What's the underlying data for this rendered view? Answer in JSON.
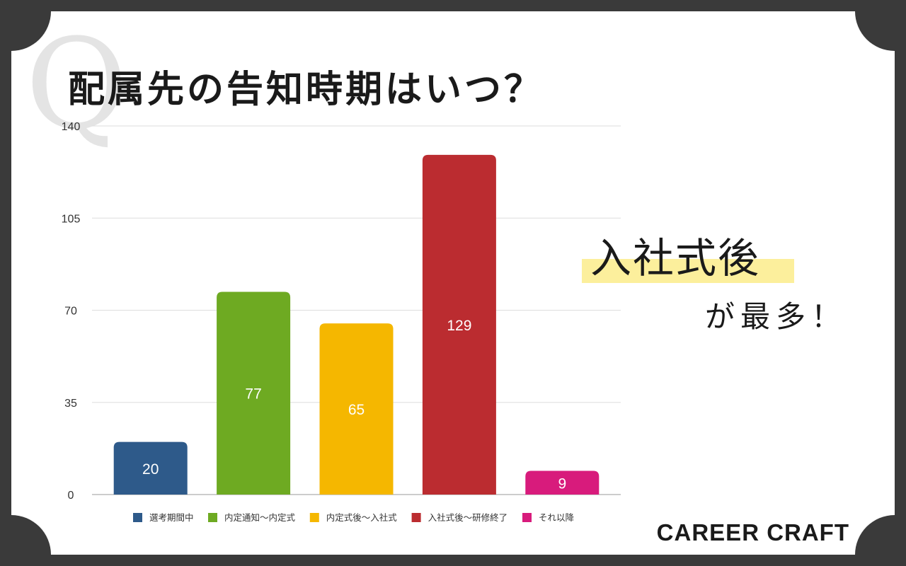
{
  "title": "配属先の告知時期はいつ？",
  "q_mark": "Q",
  "highlight": {
    "main": "入社式後",
    "sub": "が最多！",
    "bar_color": "#fcef9c"
  },
  "brand": "CAREER CRAFT",
  "colors": {
    "background_frame": "#3a3a3a",
    "card": "#ffffff"
  },
  "chart_data": {
    "type": "bar",
    "categories": [
      "選考期間中",
      "内定通知〜内定式",
      "内定式後〜入社式",
      "入社式後〜研修終了",
      "それ以降"
    ],
    "values": [
      20,
      77,
      65,
      129,
      9
    ],
    "colors": [
      "#2e5a8a",
      "#6eaa22",
      "#f5b700",
      "#bb2c30",
      "#d81b7c"
    ],
    "yticks": [
      0,
      35,
      70,
      105,
      140
    ],
    "ylim": [
      0,
      140
    ],
    "grid": true,
    "legend": "bottom",
    "data_labels": true,
    "title": "",
    "xlabel": "",
    "ylabel": ""
  }
}
